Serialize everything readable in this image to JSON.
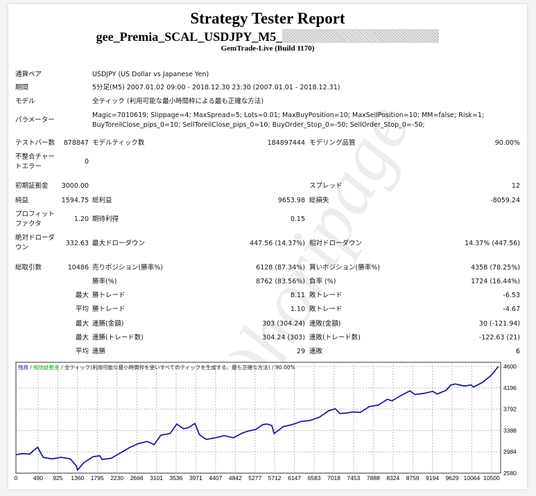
{
  "header": {
    "title": "Strategy Tester Report",
    "subtitle": "gee_Premia_SCAL_USDJPY_M5_",
    "build": "GemTrade-Live (Build 1170)"
  },
  "info": [
    {
      "label": "通貨ペア",
      "value": "USDJPY (US Dollar vs Japanese Yen)"
    },
    {
      "label": "期間",
      "value": "5分足(M5) 2007.01.02 09:00 - 2018.12.30 23:30 (2007.01.01 - 2018.12.31)"
    },
    {
      "label": "モデル",
      "value": "全ティック (利用可能な最小時間枠による最も正確な方法)"
    },
    {
      "label": "パラメーター",
      "value": "Magic=7010619; Slippage=4; MaxSpread=5; Lots=0.01; MaxBuyPosition=10; MaxSellPosition=10; MM=false; Risk=1;",
      "value2": "BuyToreilClose_pips_0=10; SellToreilClose_pips_0=10; BuyOrder_Stop_0=-50; SellOrder_Stop_0=-50;"
    }
  ],
  "stats": {
    "bars_label": "テストバー数",
    "bars": "878847",
    "ticks_label": "モデルティック数",
    "ticks": "184897444",
    "quality_label": "モデリング品質",
    "quality": "90.00%",
    "mismatch_label1": "不整合チャー",
    "mismatch_label2": "トエラー",
    "mismatch": "0",
    "deposit_label": "初期証拠金",
    "deposit": "3000.00",
    "spread_label": "スプレッド",
    "spread": "12",
    "net_label": "純益",
    "net": "1594.75",
    "gross_profit_label": "総利益",
    "gross_profit": "9653.98",
    "gross_loss_label": "総損失",
    "gross_loss": "-8059.24",
    "pf_label1": "プロフィット",
    "pf_label2": "ファクタ",
    "pf": "1.20",
    "payoff_label": "期待利得",
    "payoff": "0.15",
    "abs_dd_label1": "絶対ドローダ",
    "abs_dd_label2": "ウン",
    "abs_dd": "332.63",
    "max_dd_label": "最大ドローダウン",
    "max_dd": "447.56 (14.37%)",
    "rel_dd_label": "相対ドローダウン",
    "rel_dd": "14.37% (447.56)",
    "trades_label": "総取引数",
    "trades": "10486",
    "short_label": "売りポジション(勝率%)",
    "short": "6128 (87.34%)",
    "long_label": "買いポジション(勝率%)",
    "long": "4358 (78.25%)",
    "win_label": "勝率(%)",
    "win": "8762 (83.56%)",
    "loss_label": "負率 (%)",
    "loss": "1724 (16.44%)",
    "largest": "最大",
    "lp_label": "勝トレード",
    "lp": "8.11",
    "ll_label": "敗トレード",
    "ll": "-6.53",
    "average": "平均",
    "ap_label": "勝トレード",
    "ap": "1.10",
    "al_label": "敗トレード",
    "al": "-4.67",
    "mcw_label": "連勝(金額)",
    "mcw": "303 (304.24)",
    "mcl_label": "連敗(金額)",
    "mcl": "30 (-121.94)",
    "mcp_label": "連勝(トレード数)",
    "mcp": "304.24 (303)",
    "mcll_label": "連敗(トレード数)",
    "mcll": "-122.63 (21)",
    "acw_label": "連勝",
    "acw": "29",
    "acl_label": "連敗",
    "acl": "6"
  },
  "watermark": "(C)horipage",
  "chart_data": {
    "type": "line",
    "legend": {
      "balance": "残高",
      "equity": "有効証拠金",
      "model": "全ティック(利用可能な最小時間枠を使いすべてのティックを生成する、最も正確な方法)",
      "quality": "90.00%"
    },
    "x_ticks": [
      "0",
      "490",
      "925",
      "1360",
      "1795",
      "2230",
      "2666",
      "3101",
      "3536",
      "3971",
      "4407",
      "4842",
      "5277",
      "5712",
      "6147",
      "6583",
      "7018",
      "7453",
      "7888",
      "8324",
      "8759",
      "9194",
      "9629",
      "10064",
      "10500"
    ],
    "y_ticks": [
      "4600",
      "4196",
      "3792",
      "3388",
      "2984",
      "2580"
    ],
    "ylim": [
      2580,
      4680
    ],
    "xlim": [
      0,
      10700
    ],
    "colors": {
      "balance": "#1a1aa6",
      "equity": "#00b000"
    },
    "series": [
      {
        "name": "残高",
        "x": [
          0,
          150,
          300,
          420,
          480,
          600,
          800,
          1000,
          1200,
          1330,
          1360,
          1500,
          1700,
          1850,
          1900,
          2100,
          2300,
          2500,
          2700,
          2900,
          3050,
          3200,
          3400,
          3550,
          3700,
          3800,
          3950,
          4050,
          4200,
          4400,
          4600,
          4800,
          5000,
          5100,
          5300,
          5450,
          5550,
          5650,
          5700,
          5900,
          6100,
          6300,
          6500,
          6700,
          6900,
          7050,
          7150,
          7300,
          7450,
          7600,
          7800,
          8000,
          8200,
          8300,
          8500,
          8700,
          8800,
          9000,
          9200,
          9300,
          9500,
          9600,
          9700,
          9900,
          10050,
          10100,
          10300,
          10500,
          10650
        ],
        "y": [
          2930,
          2950,
          2940,
          3030,
          3070,
          2880,
          2850,
          2880,
          2850,
          2720,
          2640,
          2780,
          2890,
          2910,
          2840,
          2860,
          2960,
          3060,
          3140,
          3180,
          3120,
          3300,
          3330,
          3510,
          3420,
          3440,
          3520,
          3310,
          3220,
          3250,
          3290,
          3250,
          3340,
          3370,
          3410,
          3500,
          3510,
          3480,
          3330,
          3460,
          3500,
          3560,
          3580,
          3640,
          3760,
          3800,
          3710,
          3720,
          3740,
          3730,
          3840,
          3870,
          3980,
          3950,
          4050,
          4140,
          4070,
          4090,
          4130,
          4080,
          4150,
          4250,
          4270,
          4230,
          4250,
          4210,
          4300,
          4440,
          4600
        ]
      }
    ]
  }
}
